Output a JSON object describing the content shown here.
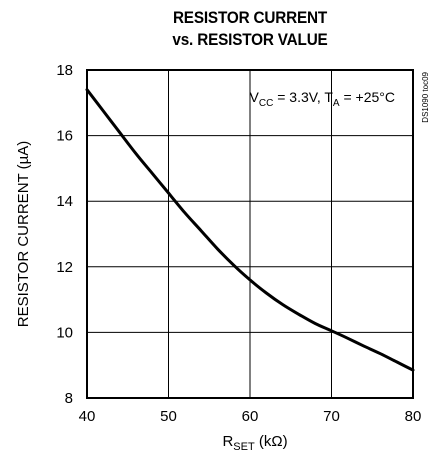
{
  "chart_data": {
    "type": "line",
    "title_line1": "RESISTOR CURRENT",
    "title_line2": "vs. RESISTOR VALUE",
    "xlabel": {
      "main": "R",
      "sub": "SET",
      "unit": " (kΩ)"
    },
    "ylabel": "RESISTOR CURRENT (µA)",
    "xlim": [
      40,
      80
    ],
    "ylim": [
      8,
      18
    ],
    "x_ticks": [
      40,
      50,
      60,
      70,
      80
    ],
    "y_ticks": [
      8,
      10,
      12,
      14,
      16,
      18
    ],
    "grid": true,
    "annotation": {
      "parts": [
        {
          "text": "V",
          "sub": false
        },
        {
          "text": "CC",
          "sub": true
        },
        {
          "text": " = 3.3V, T",
          "sub": false
        },
        {
          "text": "A",
          "sub": true
        },
        {
          "text": " = +25°C",
          "sub": false
        }
      ]
    },
    "side_code": "DS1090 toc09",
    "series": [
      {
        "x": [
          40,
          42,
          44,
          46,
          48,
          50,
          52,
          54,
          56,
          58,
          60,
          62,
          64,
          66,
          68,
          70,
          72,
          74,
          76,
          78,
          80
        ],
        "values": [
          17.4,
          16.75,
          16.1,
          15.45,
          14.85,
          14.25,
          13.65,
          13.1,
          12.55,
          12.05,
          11.6,
          11.2,
          10.85,
          10.55,
          10.27,
          10.05,
          9.82,
          9.58,
          9.35,
          9.1,
          8.85
        ]
      }
    ],
    "colors": {
      "line": "#000000",
      "grid": "#000000",
      "background": "#ffffff"
    }
  }
}
